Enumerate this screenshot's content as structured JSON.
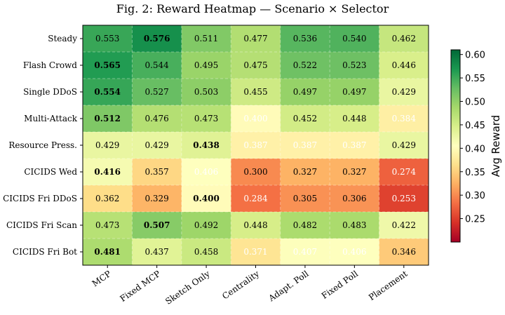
{
  "chart_data": {
    "type": "heatmap",
    "title": "Fig. 2: Reward Heatmap — Scenario × Selector",
    "rows": [
      "Steady",
      "Flash Crowd",
      "Single DDoS",
      "Multi-Attack",
      "Resource Press.",
      "CICIDS Wed",
      "CICIDS Fri DDoS",
      "CICIDS Fri Scan",
      "CICIDS Fri Bot"
    ],
    "columns": [
      "MCP",
      "Fixed MCP",
      "Sketch Only",
      "Centrality",
      "Adapt. Poll",
      "Fixed Poll",
      "Placement"
    ],
    "values": [
      [
        0.553,
        0.576,
        0.511,
        0.477,
        0.536,
        0.54,
        0.462
      ],
      [
        0.565,
        0.544,
        0.495,
        0.475,
        0.522,
        0.523,
        0.446
      ],
      [
        0.554,
        0.527,
        0.503,
        0.455,
        0.497,
        0.497,
        0.429
      ],
      [
        0.512,
        0.476,
        0.473,
        0.4,
        0.452,
        0.448,
        0.384
      ],
      [
        0.429,
        0.429,
        0.438,
        0.387,
        0.387,
        0.387,
        0.429
      ],
      [
        0.416,
        0.357,
        0.406,
        0.3,
        0.327,
        0.327,
        0.274
      ],
      [
        0.362,
        0.329,
        0.4,
        0.284,
        0.305,
        0.306,
        0.253
      ],
      [
        0.473,
        0.507,
        0.492,
        0.448,
        0.482,
        0.483,
        0.422
      ],
      [
        0.481,
        0.437,
        0.458,
        0.371,
        0.407,
        0.406,
        0.346
      ]
    ],
    "row_best_col": [
      1,
      0,
      0,
      0,
      2,
      0,
      2,
      1,
      0
    ],
    "colorbar": {
      "label": "Avg Reward",
      "range": [
        0.2,
        0.61
      ],
      "ticks": [
        "0.60",
        "0.55",
        "0.50",
        "0.45",
        "0.40",
        "0.35",
        "0.30",
        "0.25"
      ],
      "colormap": "RdYlGn"
    },
    "grid": true
  }
}
